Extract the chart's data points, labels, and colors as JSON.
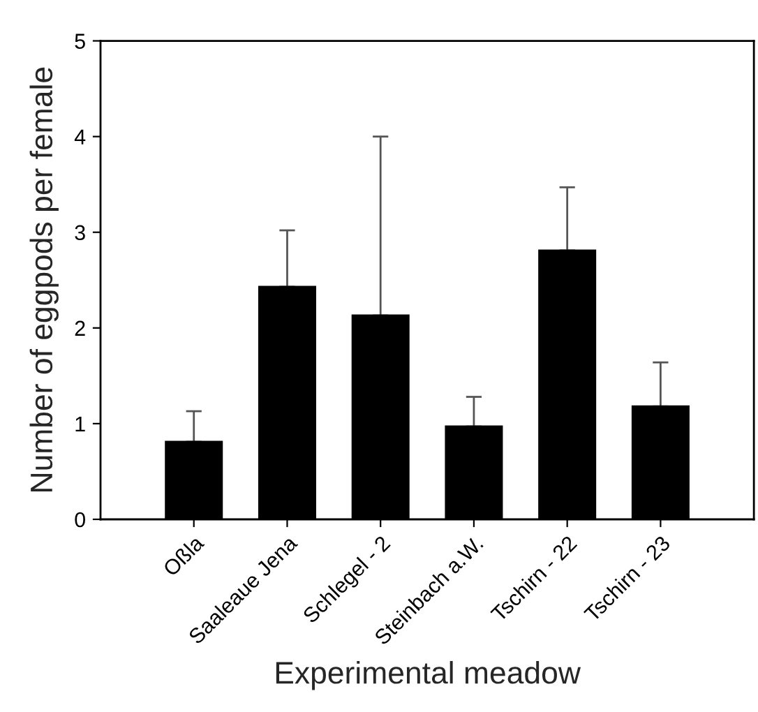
{
  "chart_data": {
    "type": "bar",
    "xlabel": "Experimental meadow",
    "ylabel": "Number of eggpods per female",
    "categories": [
      "Oßla",
      "Saaleaue Jena",
      "Schlegel - 2",
      "Steinbach a.W.",
      "Tschirn - 22",
      "Tschirn - 23"
    ],
    "values": [
      0.81,
      2.43,
      2.13,
      0.97,
      2.81,
      1.18
    ],
    "errors": [
      [
        0.81,
        1.13
      ],
      [
        2.43,
        3.02
      ],
      [
        2.13,
        4.0
      ],
      [
        0.97,
        1.28
      ],
      [
        2.81,
        3.47
      ],
      [
        1.18,
        1.64
      ]
    ],
    "color": "#000000",
    "ylim": [
      0,
      5
    ],
    "yticks": [
      0,
      1,
      2,
      3,
      4,
      5
    ],
    "grid": false,
    "legend": false
  }
}
